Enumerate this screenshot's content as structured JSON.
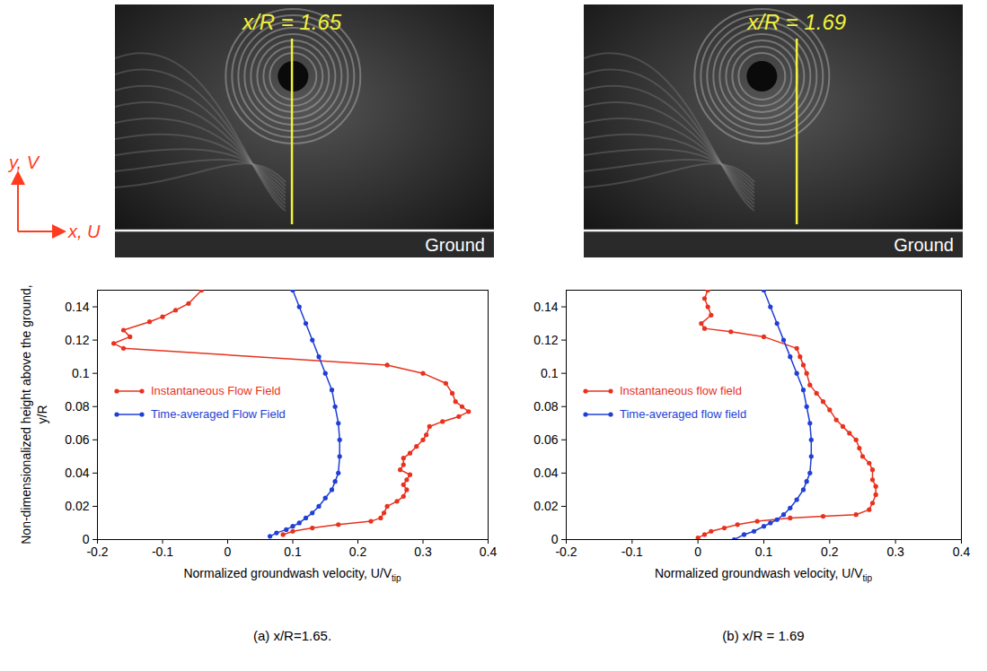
{
  "axes_icon": {
    "y_label": "y, V",
    "x_label": "x, U"
  },
  "chart_data": [
    {
      "type": "line",
      "caption": "(a) x/R=1.65.",
      "image": {
        "label": "x/R = 1.65",
        "ground_label": "Ground"
      },
      "ylabel": "Non-dimensionalized height above the ground, y/R",
      "xlabel": "Normalized groundwash velocity, U/V",
      "xlabel_subscript": "tip",
      "xlim": [
        -0.2,
        0.4
      ],
      "xticks": [
        -0.2,
        -0.1,
        0,
        0.1,
        0.2,
        0.3,
        0.4
      ],
      "ylim": [
        0,
        0.15
      ],
      "yticks": [
        0,
        0.02,
        0.04,
        0.06,
        0.08,
        0.1,
        0.12,
        0.14
      ],
      "legend": "left",
      "series": [
        {
          "name": "Instantaneous Flow Field",
          "color": "#e8321e",
          "marker": "circle",
          "x": [
            0.085,
            0.1,
            0.13,
            0.17,
            0.22,
            0.235,
            0.24,
            0.245,
            0.26,
            0.27,
            0.275,
            0.27,
            0.275,
            0.28,
            0.265,
            0.27,
            0.27,
            0.28,
            0.29,
            0.3,
            0.305,
            0.31,
            0.33,
            0.355,
            0.37,
            0.36,
            0.35,
            0.345,
            0.335,
            0.3,
            0.245,
            -0.16,
            -0.175,
            -0.15,
            -0.16,
            -0.12,
            -0.1,
            -0.08,
            -0.06,
            -0.04
          ],
          "y": [
            0.003,
            0.005,
            0.007,
            0.009,
            0.011,
            0.013,
            0.016,
            0.02,
            0.023,
            0.026,
            0.03,
            0.033,
            0.036,
            0.039,
            0.042,
            0.045,
            0.049,
            0.052,
            0.056,
            0.06,
            0.063,
            0.068,
            0.071,
            0.074,
            0.077,
            0.08,
            0.083,
            0.088,
            0.094,
            0.1,
            0.105,
            0.115,
            0.118,
            0.122,
            0.126,
            0.131,
            0.134,
            0.138,
            0.142,
            0.15
          ]
        },
        {
          "name": "Time-averaged Flow Field",
          "color": "#1f3fd6",
          "marker": "circle",
          "x": [
            0.065,
            0.075,
            0.09,
            0.1,
            0.11,
            0.12,
            0.13,
            0.14,
            0.15,
            0.16,
            0.165,
            0.17,
            0.172,
            0.172,
            0.17,
            0.165,
            0.16,
            0.15,
            0.14,
            0.13,
            0.12,
            0.11,
            0.1
          ],
          "y": [
            0.002,
            0.004,
            0.006,
            0.008,
            0.01,
            0.013,
            0.016,
            0.02,
            0.025,
            0.03,
            0.035,
            0.04,
            0.05,
            0.06,
            0.07,
            0.08,
            0.09,
            0.1,
            0.11,
            0.12,
            0.13,
            0.14,
            0.15
          ]
        }
      ]
    },
    {
      "type": "line",
      "caption": "(b) x/R = 1.69",
      "image": {
        "label": "x/R = 1.69",
        "ground_label": "Ground"
      },
      "xlim": [
        -0.2,
        0.4
      ],
      "xticks": [
        -0.2,
        -0.1,
        0,
        0.1,
        0.2,
        0.3,
        0.4
      ],
      "xlabel": "Normalized groundwash velocity, U/V",
      "xlabel_subscript": "tip",
      "ylim": [
        0,
        0.15
      ],
      "yticks": [
        0,
        0.02,
        0.04,
        0.06,
        0.08,
        0.1,
        0.12,
        0.14
      ],
      "legend": "left",
      "series": [
        {
          "name": "Instantaneous flow field",
          "color": "#e8321e",
          "marker": "circle",
          "x": [
            0,
            0.01,
            0.02,
            0.04,
            0.06,
            0.09,
            0.14,
            0.19,
            0.24,
            0.26,
            0.265,
            0.27,
            0.27,
            0.265,
            0.265,
            0.26,
            0.25,
            0.245,
            0.24,
            0.23,
            0.22,
            0.21,
            0.2,
            0.19,
            0.18,
            0.17,
            0.165,
            0.16,
            0.155,
            0.15,
            0.1,
            0.05,
            0.01,
            0.005,
            0.02,
            0.015,
            0.01,
            0.015
          ],
          "y": [
            0.001,
            0.003,
            0.005,
            0.007,
            0.009,
            0.011,
            0.013,
            0.014,
            0.015,
            0.018,
            0.022,
            0.027,
            0.032,
            0.036,
            0.042,
            0.046,
            0.05,
            0.055,
            0.06,
            0.064,
            0.068,
            0.072,
            0.078,
            0.083,
            0.088,
            0.093,
            0.1,
            0.105,
            0.11,
            0.115,
            0.122,
            0.125,
            0.127,
            0.13,
            0.135,
            0.14,
            0.145,
            0.15
          ]
        },
        {
          "name": "Time-averaged flow field",
          "color": "#1f3fd6",
          "marker": "circle",
          "x": [
            0.055,
            0.07,
            0.085,
            0.1,
            0.11,
            0.12,
            0.13,
            0.14,
            0.15,
            0.16,
            0.165,
            0.17,
            0.172,
            0.172,
            0.17,
            0.165,
            0.16,
            0.15,
            0.14,
            0.13,
            0.12,
            0.11,
            0.1
          ],
          "y": [
            0.0,
            0.003,
            0.005,
            0.008,
            0.01,
            0.012,
            0.015,
            0.019,
            0.024,
            0.03,
            0.035,
            0.04,
            0.05,
            0.06,
            0.07,
            0.08,
            0.09,
            0.1,
            0.11,
            0.12,
            0.13,
            0.14,
            0.15
          ]
        }
      ]
    }
  ]
}
